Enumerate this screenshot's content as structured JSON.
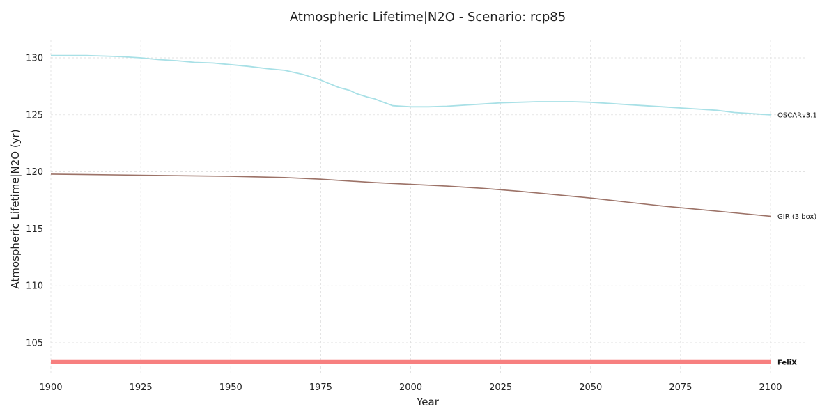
{
  "chart_data": {
    "type": "line",
    "title": "Atmospheric Lifetime|N2O - Scenario: rcp85",
    "xlabel": "Year",
    "ylabel": "Atmospheric Lifetime|N2O (yr)",
    "xlim": [
      1900,
      2110
    ],
    "ylim": [
      102.5,
      131.5
    ],
    "xticks": [
      "1900",
      "1925",
      "1950",
      "1975",
      "2000",
      "2025",
      "2050",
      "2075",
      "2100"
    ],
    "yticks": [
      "105",
      "110",
      "115",
      "120",
      "125",
      "130"
    ],
    "grid": true,
    "legend": "direct labels at right end of each line",
    "series": [
      {
        "name": "OSCARv3.1",
        "color": "#a8e0e6",
        "label_bold": false,
        "line_width": 1.8,
        "x": [
          1900,
          1905,
          1910,
          1915,
          1920,
          1925,
          1930,
          1935,
          1940,
          1945,
          1950,
          1955,
          1960,
          1965,
          1970,
          1975,
          1980,
          1983,
          1985,
          1988,
          1990,
          1992,
          1995,
          2000,
          2005,
          2010,
          2015,
          2020,
          2025,
          2030,
          2035,
          2040,
          2045,
          2050,
          2055,
          2060,
          2065,
          2070,
          2075,
          2080,
          2085,
          2090,
          2095,
          2100
        ],
        "values": [
          130.2,
          130.2,
          130.2,
          130.15,
          130.1,
          130.0,
          129.85,
          129.75,
          129.6,
          129.55,
          129.4,
          129.25,
          129.05,
          128.9,
          128.55,
          128.05,
          127.4,
          127.15,
          126.85,
          126.55,
          126.4,
          126.15,
          125.8,
          125.7,
          125.7,
          125.75,
          125.85,
          125.95,
          126.05,
          126.1,
          126.15,
          126.15,
          126.15,
          126.1,
          126.0,
          125.9,
          125.8,
          125.7,
          125.6,
          125.5,
          125.4,
          125.2,
          125.1,
          125.0
        ]
      },
      {
        "name": "GIR (3 box)",
        "color": "#9c7267",
        "label_bold": false,
        "line_width": 1.6,
        "x": [
          1900,
          1925,
          1950,
          1965,
          1975,
          1990,
          2000,
          2010,
          2020,
          2030,
          2040,
          2050,
          2060,
          2070,
          2080,
          2090,
          2100
        ],
        "values": [
          119.8,
          119.7,
          119.6,
          119.5,
          119.35,
          119.05,
          118.9,
          118.75,
          118.55,
          118.3,
          118.0,
          117.7,
          117.35,
          117.0,
          116.7,
          116.4,
          116.1
        ]
      },
      {
        "name": "FeliX",
        "color": "#f77f7f",
        "label_bold": true,
        "line_width": 6,
        "x": [
          1900,
          2100
        ],
        "values": [
          103.3,
          103.3
        ]
      }
    ]
  }
}
